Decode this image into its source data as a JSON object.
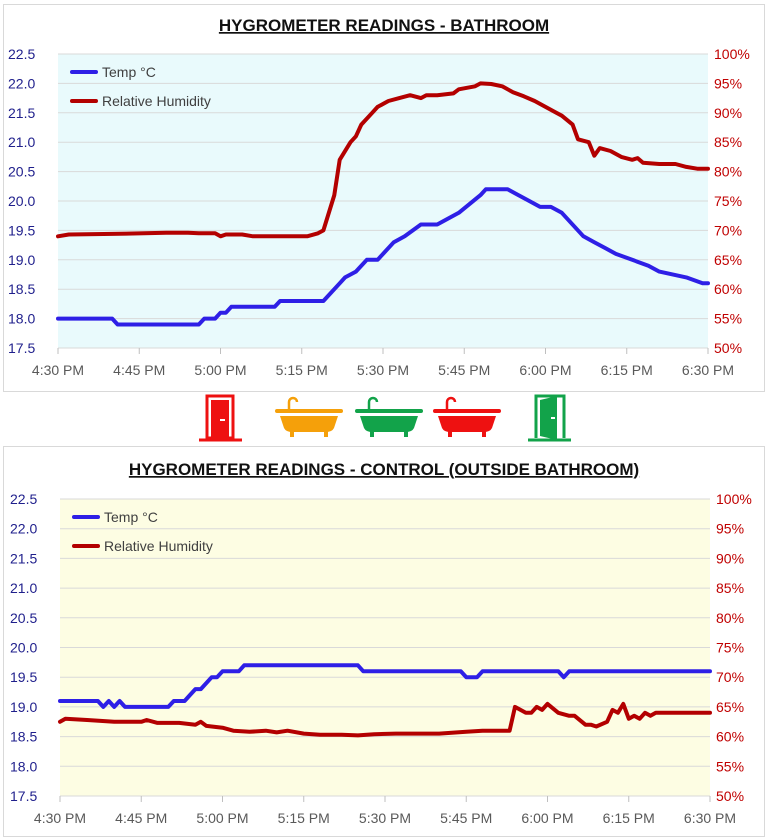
{
  "colors": {
    "temp": "#2e1fe6",
    "humidity": "#b30000",
    "left_axis": "#1f1f8c",
    "right_axis": "#c00000",
    "grid": "#d9d9d9",
    "tick_text": "#595959"
  },
  "icons": [
    {
      "name": "door-closed-icon",
      "color": "#ee1111"
    },
    {
      "name": "bathtub-icon",
      "color": "#f5a00a"
    },
    {
      "name": "bathtub-icon",
      "color": "#12a34a"
    },
    {
      "name": "bathtub-icon",
      "color": "#ee1111"
    },
    {
      "name": "door-open-icon",
      "color": "#12a34a"
    }
  ],
  "chart_data": [
    {
      "type": "line",
      "title": "HYGROMETER READINGS - BATHROOM",
      "background": "#e9fafc",
      "x_unit": "minutes after 4:30 PM",
      "xlim": [
        0,
        120
      ],
      "x_tick_labels": [
        "4:30 PM",
        "4:45 PM",
        "5:00 PM",
        "5:15 PM",
        "5:30 PM",
        "5:45 PM",
        "6:00 PM",
        "6:15 PM",
        "6:30 PM"
      ],
      "y_left": {
        "label": "Temp °C",
        "lim": [
          17.5,
          22.5
        ],
        "ticks": [
          "17.5",
          "18.0",
          "18.5",
          "19.0",
          "19.5",
          "20.0",
          "20.5",
          "21.0",
          "21.5",
          "22.0",
          "22.5"
        ]
      },
      "y_right": {
        "label": "Relative Humidity",
        "lim": [
          50,
          100
        ],
        "ticks": [
          "50%",
          "55%",
          "60%",
          "65%",
          "70%",
          "75%",
          "80%",
          "85%",
          "90%",
          "95%",
          "100%"
        ]
      },
      "legend": {
        "position": "top-left",
        "entries": [
          "Temp °C",
          "Relative Humidity"
        ]
      },
      "grid": true,
      "series": [
        {
          "name": "Temp °C",
          "axis": "left",
          "x": [
            0,
            10,
            11,
            26,
            27,
            29,
            30,
            31,
            32,
            40,
            41,
            49,
            52,
            53,
            55,
            57,
            59,
            62,
            64,
            67,
            70,
            72,
            74,
            78,
            79,
            83,
            85,
            87,
            89,
            91,
            93,
            97,
            99,
            101,
            103,
            106,
            109,
            111,
            116,
            119,
            120
          ],
          "y": [
            18.0,
            18.0,
            17.9,
            17.9,
            18.0,
            18.0,
            18.1,
            18.1,
            18.2,
            18.2,
            18.3,
            18.3,
            18.6,
            18.7,
            18.8,
            19.0,
            19.0,
            19.3,
            19.4,
            19.6,
            19.6,
            19.7,
            19.8,
            20.1,
            20.2,
            20.2,
            20.1,
            20.0,
            19.9,
            19.9,
            19.8,
            19.4,
            19.3,
            19.2,
            19.1,
            19.0,
            18.9,
            18.8,
            18.7,
            18.6,
            18.6
          ]
        },
        {
          "name": "Relative Humidity",
          "axis": "right",
          "x": [
            0,
            2,
            10,
            20,
            24,
            26,
            29,
            30,
            31,
            34,
            36,
            46,
            48,
            49,
            51,
            52,
            54,
            55,
            56,
            58,
            59,
            61,
            63,
            65,
            67,
            68,
            70,
            73,
            74,
            77,
            78,
            80,
            82,
            84,
            86,
            88,
            90,
            92,
            93,
            95,
            96,
            98,
            99,
            100,
            102,
            104,
            106,
            107,
            108,
            111,
            114,
            116,
            118,
            120
          ],
          "y": [
            69,
            69.3,
            69.4,
            69.6,
            69.6,
            69.5,
            69.5,
            69,
            69.3,
            69.3,
            69,
            69,
            69.5,
            70,
            76,
            82,
            85,
            86,
            88,
            90,
            91,
            92,
            92.5,
            93,
            92.5,
            93,
            93,
            93.3,
            94,
            94.5,
            95,
            94.9,
            94.5,
            93.5,
            92.8,
            92,
            91,
            90,
            89.5,
            88,
            85.5,
            85,
            82.7,
            84,
            83.5,
            82.5,
            82,
            82.3,
            81.5,
            81.3,
            81.3,
            80.8,
            80.5,
            80.5
          ]
        }
      ]
    },
    {
      "type": "line",
      "title": "HYGROMETER READINGS - CONTROL (OUTSIDE BATHROOM)",
      "background": "#fdfde3",
      "x_unit": "minutes after 4:30 PM",
      "xlim": [
        0,
        120
      ],
      "x_tick_labels": [
        "4:30 PM",
        "4:45 PM",
        "5:00 PM",
        "5:15 PM",
        "5:30 PM",
        "5:45 PM",
        "6:00 PM",
        "6:15 PM",
        "6:30 PM"
      ],
      "y_left": {
        "label": "Temp °C",
        "lim": [
          17.5,
          22.5
        ],
        "ticks": [
          "17.5",
          "18.0",
          "18.5",
          "19.0",
          "19.5",
          "20.0",
          "20.5",
          "21.0",
          "21.5",
          "22.0",
          "22.5"
        ]
      },
      "y_right": {
        "label": "Relative Humidity",
        "lim": [
          50,
          100
        ],
        "ticks": [
          "50%",
          "55%",
          "60%",
          "65%",
          "70%",
          "75%",
          "80%",
          "85%",
          "90%",
          "95%",
          "100%"
        ]
      },
      "legend": {
        "position": "top-left",
        "entries": [
          "Temp °C",
          "Relative Humidity"
        ]
      },
      "grid": true,
      "series": [
        {
          "name": "Temp °C",
          "axis": "left",
          "x": [
            0,
            7,
            8,
            9,
            10,
            11,
            12,
            20,
            21,
            23,
            24,
            25,
            26,
            28,
            29,
            30,
            33,
            34,
            55,
            56,
            74,
            75,
            77,
            78,
            92,
            93,
            94,
            120
          ],
          "y": [
            19.1,
            19.1,
            19.0,
            19.1,
            19.0,
            19.1,
            19.0,
            19.0,
            19.1,
            19.1,
            19.2,
            19.3,
            19.3,
            19.5,
            19.5,
            19.6,
            19.6,
            19.7,
            19.7,
            19.6,
            19.6,
            19.5,
            19.5,
            19.6,
            19.6,
            19.5,
            19.6,
            19.6
          ]
        },
        {
          "name": "Relative Humidity",
          "axis": "right",
          "x": [
            0,
            1,
            5,
            10,
            15,
            16,
            18,
            22,
            25,
            26,
            27,
            30,
            32,
            35,
            38,
            40,
            42,
            45,
            48,
            52,
            55,
            58,
            62,
            66,
            70,
            75,
            78,
            80,
            83,
            84,
            86,
            87,
            88,
            89,
            90,
            92,
            94,
            95,
            97,
            98,
            99,
            101,
            102,
            103,
            104,
            105,
            106,
            107,
            108,
            109,
            110,
            120
          ],
          "y": [
            62.5,
            63,
            62.8,
            62.5,
            62.5,
            62.8,
            62.3,
            62.3,
            62,
            62.5,
            61.8,
            61.5,
            61,
            60.8,
            61,
            60.7,
            61,
            60.5,
            60.3,
            60.3,
            60.2,
            60.4,
            60.5,
            60.5,
            60.5,
            60.8,
            61,
            61,
            61,
            65,
            64,
            64,
            65,
            64.5,
            65.5,
            64,
            63.5,
            63.5,
            62,
            62,
            61.7,
            62.5,
            64.5,
            64,
            65.5,
            63,
            63.5,
            63,
            64,
            63.5,
            64,
            64
          ]
        }
      ]
    }
  ]
}
